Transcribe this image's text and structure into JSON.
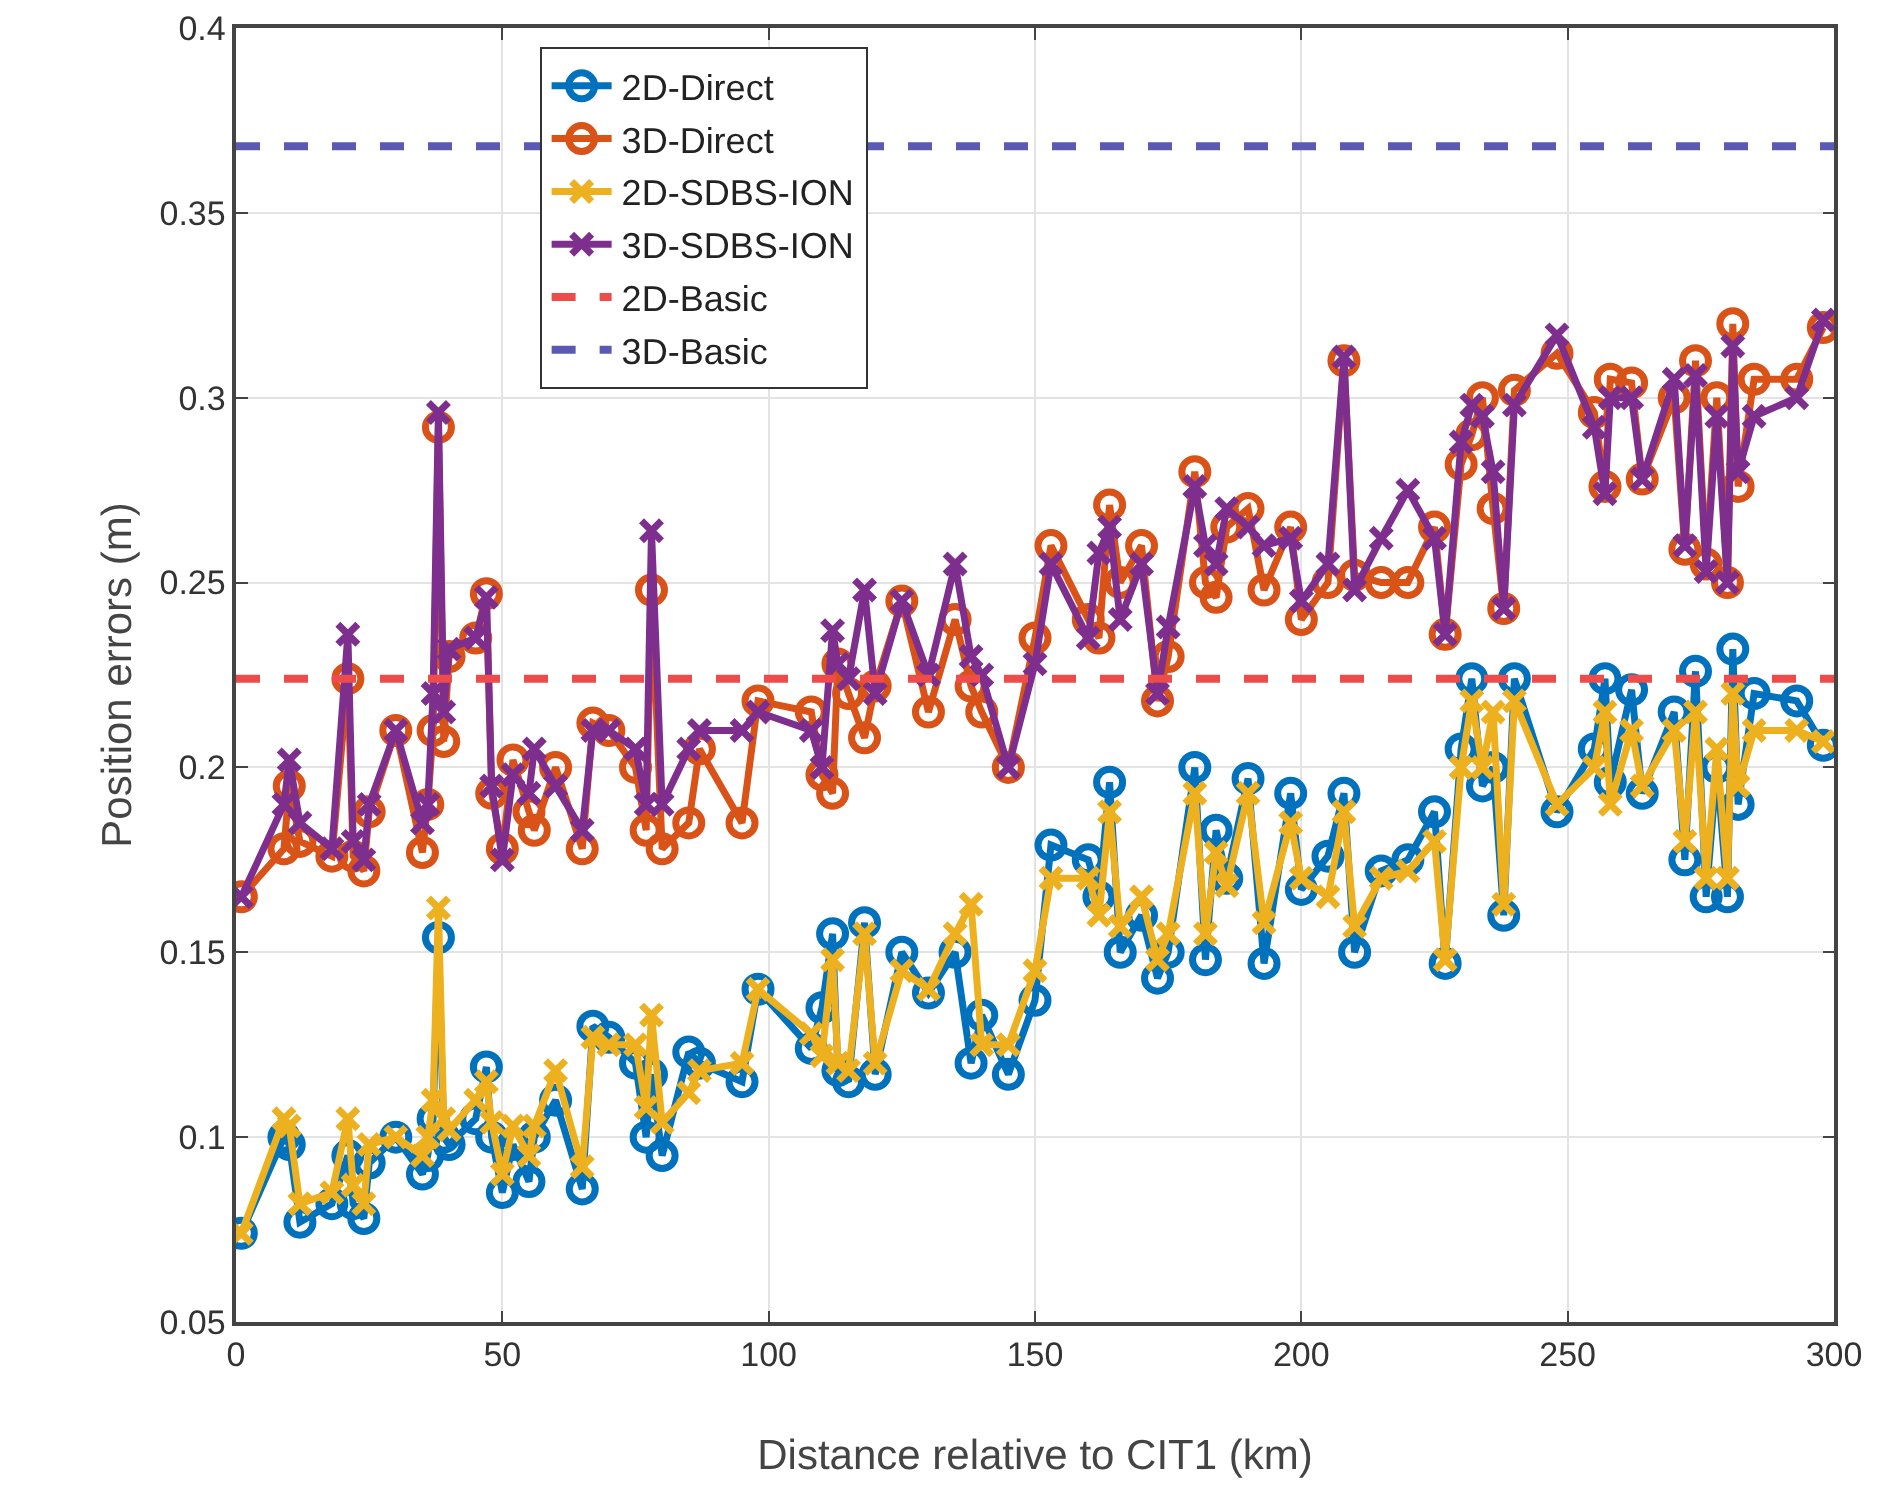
{
  "chart_data": {
    "type": "line",
    "xlabel": "Distance relative to CIT1 (km)",
    "ylabel": "Position errors (m)",
    "xlim": [
      0,
      300
    ],
    "xticks": [
      0,
      50,
      100,
      150,
      200,
      250,
      300
    ],
    "ylim": [
      0.05,
      0.4
    ],
    "yticks": [
      0.05,
      0.1,
      0.15,
      0.2,
      0.25,
      0.3,
      0.35,
      0.4
    ],
    "grid": true,
    "legend": "top left",
    "x": [
      1,
      9,
      10,
      12,
      18,
      21,
      22,
      24,
      25,
      30,
      35,
      36,
      37,
      38,
      39,
      40,
      45,
      47,
      48,
      50,
      52,
      55,
      56,
      60,
      65,
      67,
      70,
      75,
      77,
      78,
      80,
      85,
      87,
      95,
      98,
      108,
      110,
      112,
      113,
      115,
      118,
      120,
      125,
      130,
      135,
      138,
      140,
      145,
      150,
      153,
      160,
      162,
      164,
      166,
      170,
      173,
      175,
      180,
      182,
      184,
      186,
      190,
      193,
      198,
      200,
      205,
      208,
      210,
      215,
      220,
      225,
      227,
      230,
      232,
      234,
      236,
      238,
      240,
      248,
      255,
      257,
      258,
      262,
      264,
      270,
      272,
      274,
      276,
      278,
      280,
      281,
      282,
      285,
      293,
      298
    ],
    "series": [
      {
        "name": "2D-Direct",
        "color": "#0072bd",
        "marker": "circle",
        "values": [
          0.074,
          0.1,
          0.098,
          0.077,
          0.082,
          0.095,
          0.082,
          0.078,
          0.093,
          0.1,
          0.09,
          0.095,
          0.105,
          0.154,
          0.1,
          0.098,
          0.105,
          0.119,
          0.1,
          0.085,
          0.098,
          0.088,
          0.1,
          0.11,
          0.086,
          0.13,
          0.127,
          0.12,
          0.1,
          0.117,
          0.095,
          0.123,
          0.12,
          0.115,
          0.14,
          0.124,
          0.135,
          0.155,
          0.118,
          0.115,
          0.158,
          0.117,
          0.15,
          0.139,
          0.15,
          0.12,
          0.133,
          0.117,
          0.137,
          0.179,
          0.175,
          0.165,
          0.196,
          0.15,
          0.16,
          0.143,
          0.15,
          0.2,
          0.148,
          0.183,
          0.17,
          0.197,
          0.147,
          0.193,
          0.167,
          0.176,
          0.193,
          0.15,
          0.172,
          0.175,
          0.188,
          0.147,
          0.205,
          0.224,
          0.195,
          0.2,
          0.16,
          0.224,
          0.188,
          0.205,
          0.224,
          0.196,
          0.221,
          0.193,
          0.215,
          0.175,
          0.226,
          0.165,
          0.2,
          0.165,
          0.232,
          0.19,
          0.22,
          0.218,
          0.206
        ]
      },
      {
        "name": "3D-Direct",
        "color": "#d95319",
        "marker": "circle",
        "values": [
          0.165,
          0.178,
          0.195,
          0.18,
          0.176,
          0.224,
          0.176,
          0.172,
          0.188,
          0.21,
          0.177,
          0.19,
          0.21,
          0.292,
          0.207,
          0.23,
          0.235,
          0.247,
          0.193,
          0.178,
          0.202,
          0.188,
          0.183,
          0.2,
          0.178,
          0.212,
          0.21,
          0.2,
          0.183,
          0.248,
          0.178,
          0.185,
          0.205,
          0.185,
          0.218,
          0.215,
          0.198,
          0.193,
          0.228,
          0.22,
          0.208,
          0.222,
          0.245,
          0.215,
          0.24,
          0.222,
          0.215,
          0.2,
          0.235,
          0.26,
          0.24,
          0.235,
          0.271,
          0.25,
          0.26,
          0.218,
          0.23,
          0.28,
          0.25,
          0.246,
          0.265,
          0.27,
          0.248,
          0.265,
          0.24,
          0.25,
          0.31,
          0.252,
          0.25,
          0.25,
          0.265,
          0.236,
          0.282,
          0.29,
          0.3,
          0.27,
          0.243,
          0.302,
          0.312,
          0.296,
          0.276,
          0.305,
          0.304,
          0.278,
          0.3,
          0.259,
          0.31,
          0.255,
          0.3,
          0.25,
          0.32,
          0.276,
          0.305,
          0.305,
          0.319
        ]
      },
      {
        "name": "2D-SDBS-ION",
        "color": "#edb120",
        "marker": "cross",
        "values": [
          0.074,
          0.105,
          0.103,
          0.082,
          0.085,
          0.105,
          0.087,
          0.082,
          0.098,
          0.1,
          0.095,
          0.1,
          0.11,
          0.162,
          0.105,
          0.102,
          0.11,
          0.115,
          0.104,
          0.09,
          0.103,
          0.095,
          0.103,
          0.118,
          0.092,
          0.127,
          0.125,
          0.125,
          0.108,
          0.133,
          0.104,
          0.112,
          0.118,
          0.12,
          0.14,
          0.128,
          0.122,
          0.148,
          0.12,
          0.118,
          0.155,
          0.12,
          0.145,
          0.14,
          0.155,
          0.163,
          0.125,
          0.125,
          0.145,
          0.17,
          0.17,
          0.16,
          0.188,
          0.157,
          0.165,
          0.148,
          0.155,
          0.193,
          0.155,
          0.177,
          0.168,
          0.193,
          0.158,
          0.185,
          0.17,
          0.165,
          0.188,
          0.157,
          0.17,
          0.172,
          0.18,
          0.148,
          0.2,
          0.218,
          0.2,
          0.215,
          0.163,
          0.218,
          0.19,
          0.2,
          0.215,
          0.19,
          0.21,
          0.195,
          0.21,
          0.18,
          0.215,
          0.17,
          0.205,
          0.17,
          0.22,
          0.195,
          0.21,
          0.21,
          0.207
        ]
      },
      {
        "name": "3D-SDBS-ION",
        "color": "#7e2f8e",
        "marker": "cross",
        "values": [
          0.165,
          0.19,
          0.202,
          0.185,
          0.178,
          0.236,
          0.18,
          0.175,
          0.19,
          0.21,
          0.185,
          0.19,
          0.22,
          0.296,
          0.215,
          0.232,
          0.235,
          0.246,
          0.195,
          0.175,
          0.198,
          0.193,
          0.205,
          0.195,
          0.183,
          0.21,
          0.21,
          0.205,
          0.19,
          0.264,
          0.19,
          0.205,
          0.21,
          0.21,
          0.215,
          0.21,
          0.2,
          0.237,
          0.228,
          0.224,
          0.248,
          0.22,
          0.245,
          0.225,
          0.255,
          0.23,
          0.225,
          0.2,
          0.228,
          0.255,
          0.235,
          0.258,
          0.265,
          0.24,
          0.255,
          0.22,
          0.238,
          0.276,
          0.26,
          0.255,
          0.27,
          0.265,
          0.26,
          0.262,
          0.245,
          0.255,
          0.311,
          0.248,
          0.262,
          0.275,
          0.262,
          0.236,
          0.288,
          0.298,
          0.295,
          0.28,
          0.243,
          0.298,
          0.317,
          0.292,
          0.274,
          0.3,
          0.3,
          0.278,
          0.305,
          0.26,
          0.306,
          0.253,
          0.295,
          0.25,
          0.314,
          0.28,
          0.295,
          0.3,
          0.321
        ]
      }
    ],
    "ref_lines": [
      {
        "axis": "y",
        "value": 0.224,
        "label": "2D-Basic",
        "color": "#ee4b4b",
        "line_style": "dashed"
      },
      {
        "axis": "y",
        "value": 0.368,
        "label": "3D-Basic",
        "color": "#5a5ab4",
        "line_style": "dashed"
      }
    ]
  }
}
